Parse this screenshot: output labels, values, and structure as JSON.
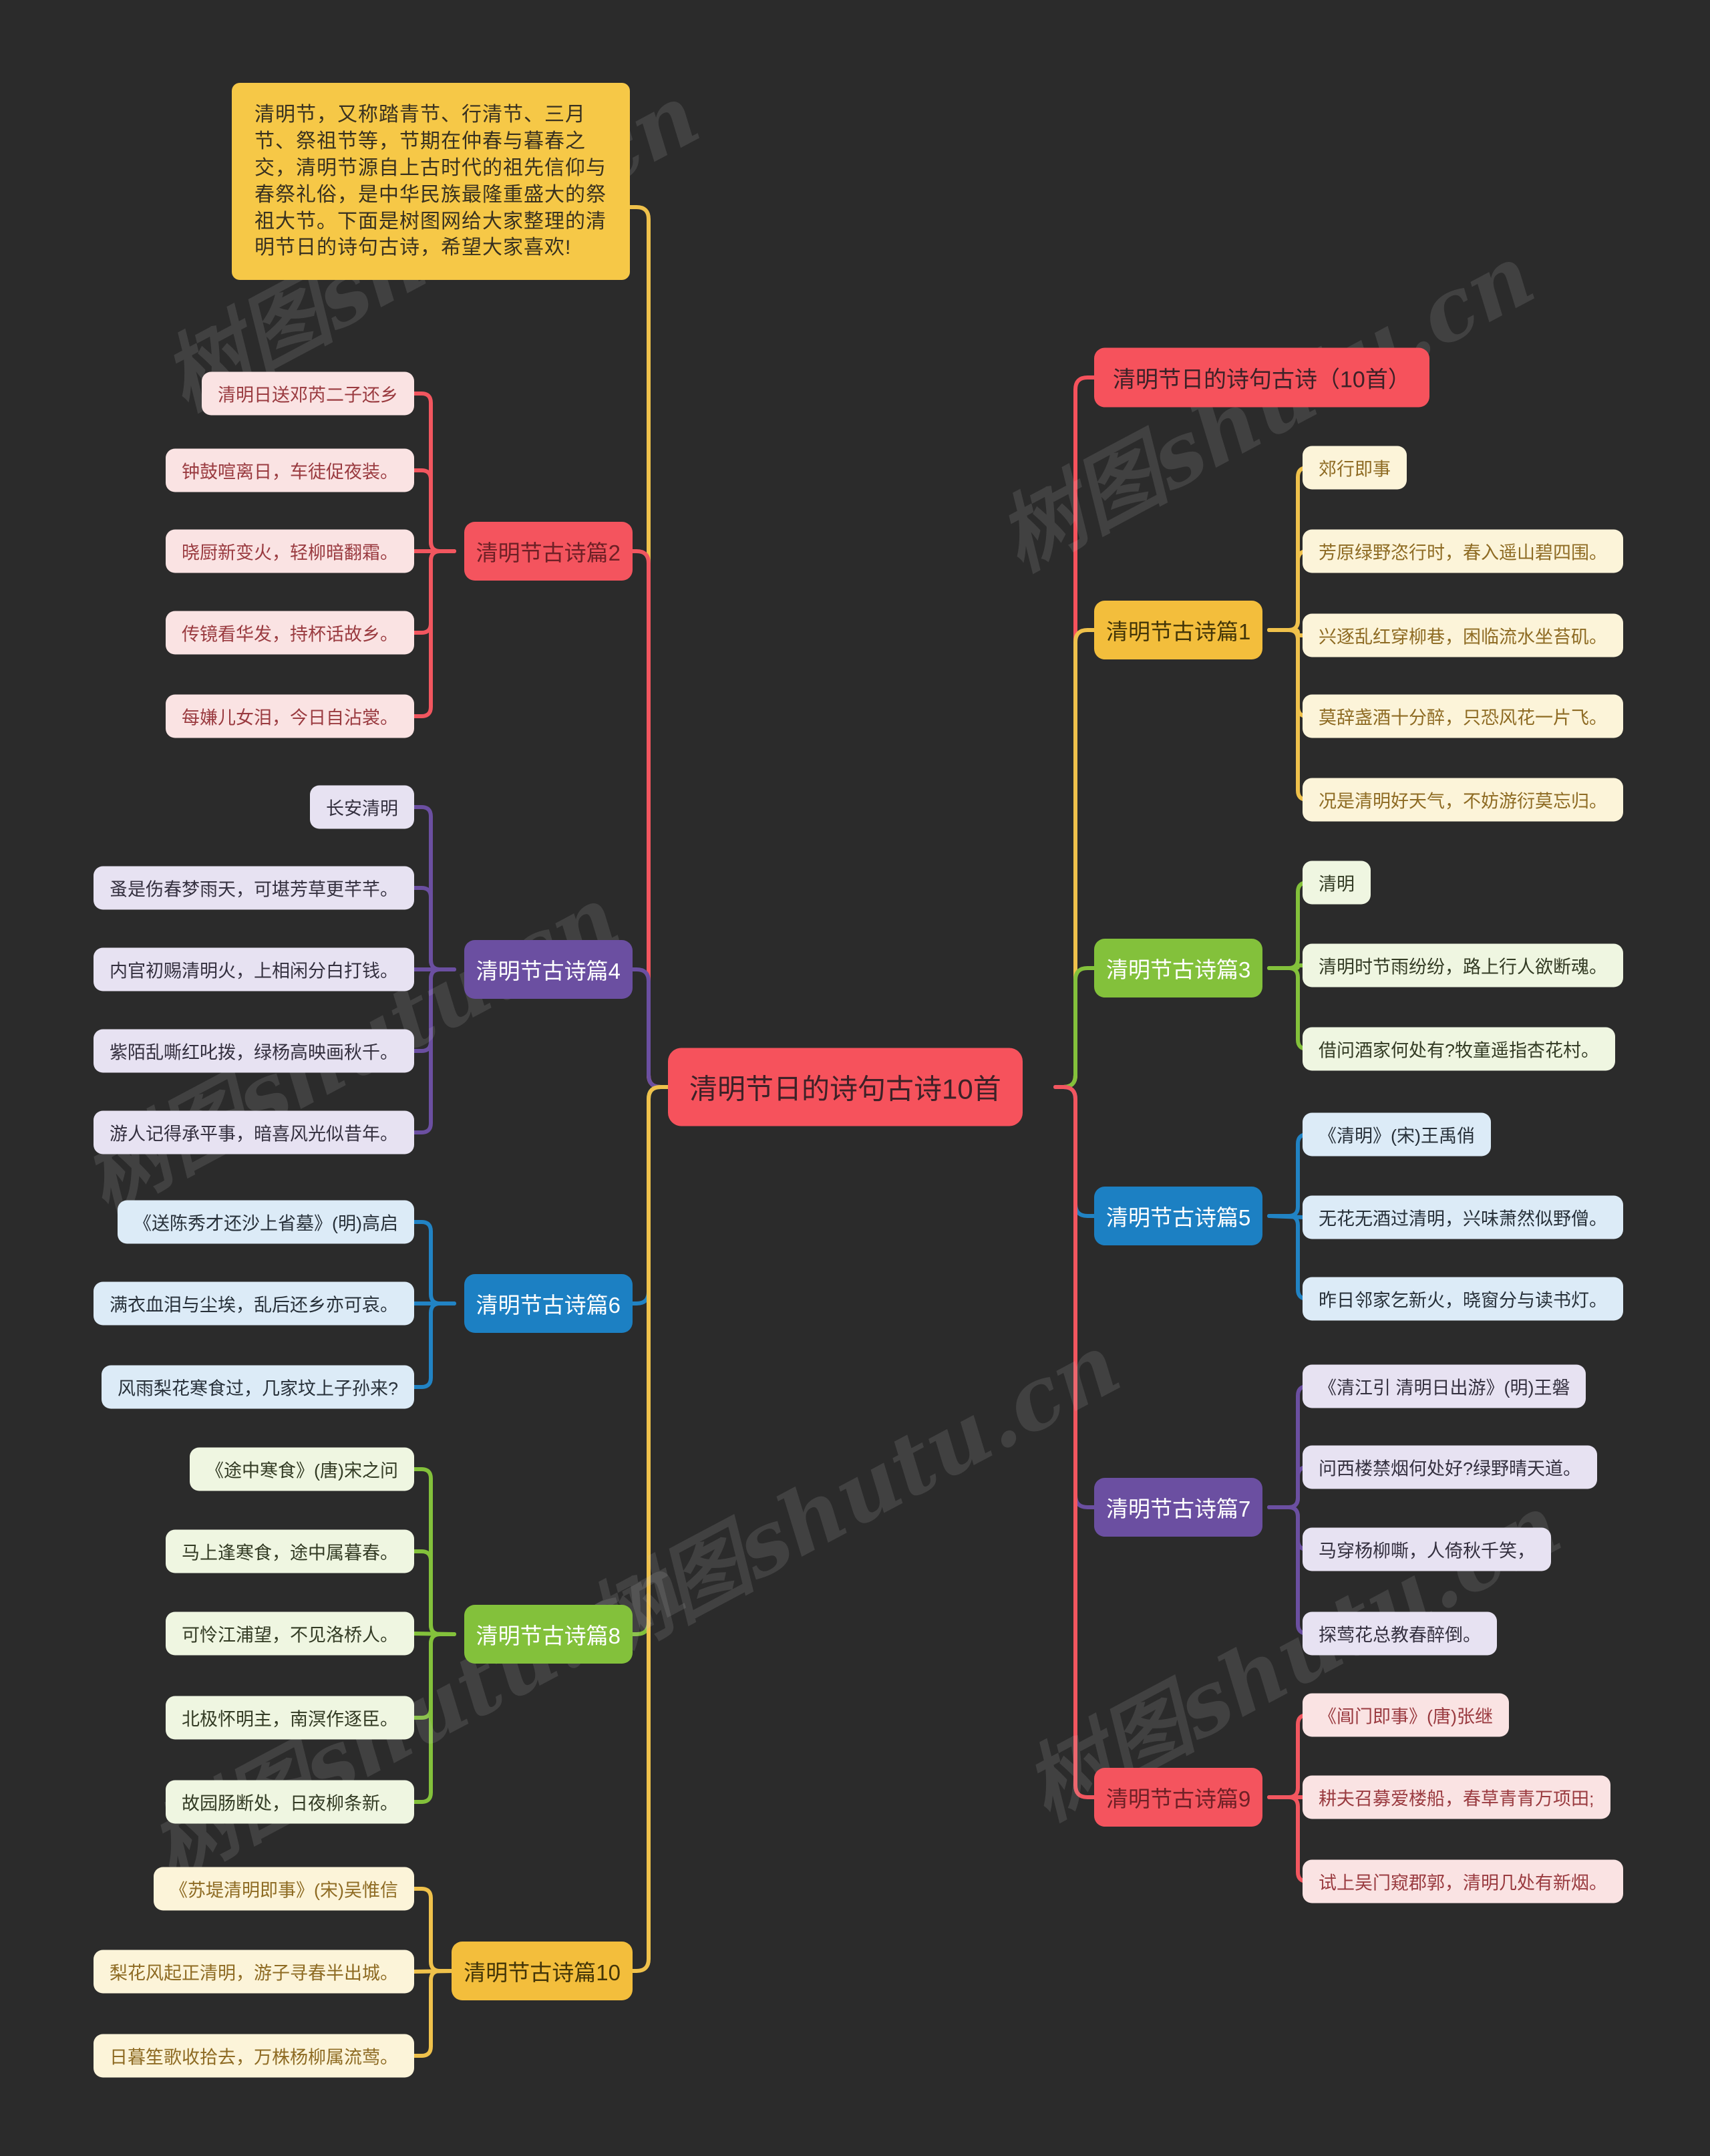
{
  "watermark_text": "树图shutu.cn",
  "intro": {
    "text": "清明节，又称踏青节、行清节、三月节、祭祖节等，节期在仲春与暮春之交，清明节源自上古时代的祖先信仰与春祭礼俗，是中华民族最隆重盛大的祭祖大节。下面是树图网给大家整理的清明节日的诗句古诗，希望大家喜欢!"
  },
  "center": {
    "label": "清明节日的诗句古诗10首"
  },
  "right_title": {
    "label": "清明节日的诗句古诗（10首）"
  },
  "palette": {
    "background": "#2B2B2B",
    "intro_bg": "#F6C847",
    "intro_text": "#383120",
    "center_bg": "#F6525C",
    "center_text": "#3D2127",
    "red": {
      "node_bg": "#F4545E",
      "node_text": "#6E2026",
      "leaf_bg": "#FAE3E3",
      "leaf_text": "#9A3B40",
      "line": "#F2565F"
    },
    "purple": {
      "node_bg": "#6B4FA1",
      "node_text": "#FFFFFF",
      "leaf_bg": "#E7E2F2",
      "leaf_text": "#34303F",
      "line": "#6B4FA1"
    },
    "blue": {
      "node_bg": "#1C80C3",
      "node_text": "#FFFFFF",
      "leaf_bg": "#DCEBF7",
      "leaf_text": "#273039",
      "line": "#2183C4"
    },
    "green": {
      "node_bg": "#83C13B",
      "node_text": "#FFFFFF",
      "leaf_bg": "#EFF6E1",
      "leaf_text": "#333B24",
      "line": "#83C13B"
    },
    "yellow": {
      "node_bg": "#F3BE3C",
      "node_text": "#433508",
      "leaf_bg": "#FCF4D9",
      "leaf_text": "#8E6B23",
      "line": "#EFC14B"
    }
  },
  "branches": [
    {
      "id": "p2",
      "side": "left",
      "color": "red",
      "label": "清明节古诗篇2",
      "items": [
        "清明日送邓芮二子还乡",
        "钟鼓喧离日，车徒促夜装。",
        "晓厨新变火，轻柳暗翻霜。",
        "传镜看华发，持杯话故乡。",
        "每嫌儿女泪，今日自沾裳。"
      ]
    },
    {
      "id": "p4",
      "side": "left",
      "color": "purple",
      "label": "清明节古诗篇4",
      "items": [
        "长安清明",
        "蚤是伤春梦雨天，可堪芳草更芊芊。",
        "内官初赐清明火，上相闲分白打钱。",
        "紫陌乱嘶红叱拨，绿杨高映画秋千。",
        "游人记得承平事，暗喜风光似昔年。"
      ]
    },
    {
      "id": "p6",
      "side": "left",
      "color": "blue",
      "label": "清明节古诗篇6",
      "items": [
        "《送陈秀才还沙上省墓》(明)高启",
        "满衣血泪与尘埃，乱后还乡亦可哀。",
        "风雨梨花寒食过，几家坟上子孙来?"
      ]
    },
    {
      "id": "p8",
      "side": "left",
      "color": "green",
      "label": "清明节古诗篇8",
      "items": [
        "《途中寒食》(唐)宋之问",
        "马上逢寒食，途中属暮春。",
        "可怜江浦望，不见洛桥人。",
        "北极怀明主，南溟作逐臣。",
        "故园肠断处，日夜柳条新。"
      ]
    },
    {
      "id": "p10",
      "side": "left",
      "color": "yellow",
      "label": "清明节古诗篇10",
      "items": [
        "《苏堤清明即事》(宋)吴惟信",
        "梨花风起正清明，游子寻春半出城。",
        "日暮笙歌收拾去，万株杨柳属流莺。"
      ]
    },
    {
      "id": "p1",
      "side": "right",
      "color": "yellow",
      "label": "清明节古诗篇1",
      "items": [
        "郊行即事",
        "芳原绿野恣行时，春入遥山碧四围。",
        "兴逐乱红穿柳巷，困临流水坐苔矶。",
        "莫辞盏酒十分醉，只恐风花一片飞。",
        "况是清明好天气，不妨游衍莫忘归。"
      ]
    },
    {
      "id": "p3",
      "side": "right",
      "color": "green",
      "label": "清明节古诗篇3",
      "items": [
        "清明",
        "清明时节雨纷纷，路上行人欲断魂。",
        "借问酒家何处有?牧童遥指杏花村。"
      ]
    },
    {
      "id": "p5",
      "side": "right",
      "color": "blue",
      "label": "清明节古诗篇5",
      "items": [
        "《清明》(宋)王禹俏",
        "无花无酒过清明，兴味萧然似野僧。",
        "昨日邻家乞新火，晓窗分与读书灯。"
      ]
    },
    {
      "id": "p7",
      "side": "right",
      "color": "purple",
      "label": "清明节古诗篇7",
      "items": [
        "《清江引 清明日出游》(明)王磐",
        "问西楼禁烟何处好?绿野晴天道。",
        "马穿杨柳嘶，人倚秋千笑，",
        "探莺花总教春醉倒。"
      ]
    },
    {
      "id": "p9",
      "side": "right",
      "color": "red",
      "label": "清明节古诗篇9",
      "items": [
        "《阊门即事》(唐)张继",
        "耕夫召募爱楼船，春草青青万项田;",
        "试上吴门窥郡郭，清明几处有新烟。"
      ]
    }
  ]
}
